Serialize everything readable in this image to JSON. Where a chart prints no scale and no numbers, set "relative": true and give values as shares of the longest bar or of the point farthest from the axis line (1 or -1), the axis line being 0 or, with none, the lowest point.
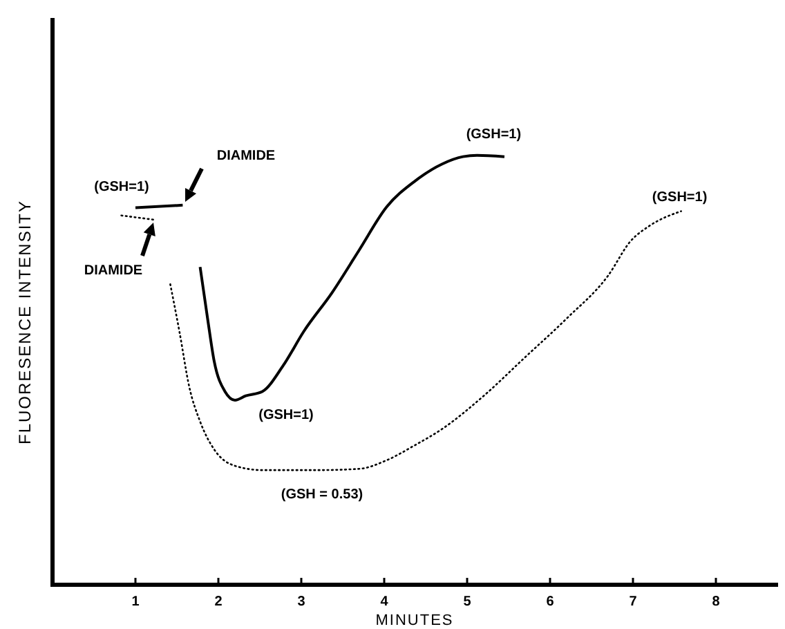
{
  "chart_data": {
    "type": "line",
    "relative": true,
    "xlabel": "MINUTES",
    "ylabel": "FLUORESENCE INTENSITY",
    "xlim": [
      0,
      8.75
    ],
    "xticks": [
      1,
      2,
      3,
      4,
      5,
      6,
      7,
      8
    ],
    "series": [
      {
        "color": "#000000",
        "line_style": "solid",
        "x": [
          1.0,
          1.57,
          null,
          1.78,
          1.87,
          1.95,
          2.08,
          2.2,
          2.33,
          2.53,
          2.78,
          3.03,
          3.37,
          3.7,
          4.03,
          4.37,
          4.7,
          4.95,
          5.12,
          5.45
        ],
        "values": [
          0.878,
          0.884,
          null,
          0.74,
          0.62,
          0.52,
          0.45,
          0.43,
          0.44,
          0.45,
          0.51,
          0.59,
          0.68,
          0.78,
          0.88,
          0.94,
          0.98,
          0.997,
          1.0,
          0.997
        ]
      },
      {
        "color": "#000000",
        "line_style": "dotted",
        "x": [
          0.83,
          1.23,
          null,
          1.42,
          1.53,
          1.65,
          1.78,
          1.95,
          2.2,
          2.53,
          3.2,
          3.7,
          4.03,
          4.37,
          4.7,
          5.2,
          5.7,
          6.2,
          6.7,
          6.97,
          7.2,
          7.58
        ],
        "values": [
          0.86,
          0.85,
          null,
          0.7,
          0.59,
          0.46,
          0.38,
          0.315,
          0.277,
          0.267,
          0.267,
          0.27,
          0.29,
          0.325,
          0.363,
          0.44,
          0.53,
          0.62,
          0.72,
          0.8,
          0.836,
          0.87
        ]
      }
    ],
    "annotations": [
      {
        "text": "(GSH=1)",
        "x": 1.0,
        "y": 0.878
      },
      "DIAMIDE",
      "DIAMIDE",
      {
        "text": "(GSH=1)",
        "x": 2.2,
        "y": 0.43
      },
      {
        "text": "(GSH = 0.53)",
        "x": 3.2,
        "y": 0.267
      },
      {
        "text": "(GSH=1)",
        "x": 5.12,
        "y": 1.0
      },
      {
        "text": "(GSH=1)",
        "x": 7.58,
        "y": 0.87
      }
    ]
  }
}
